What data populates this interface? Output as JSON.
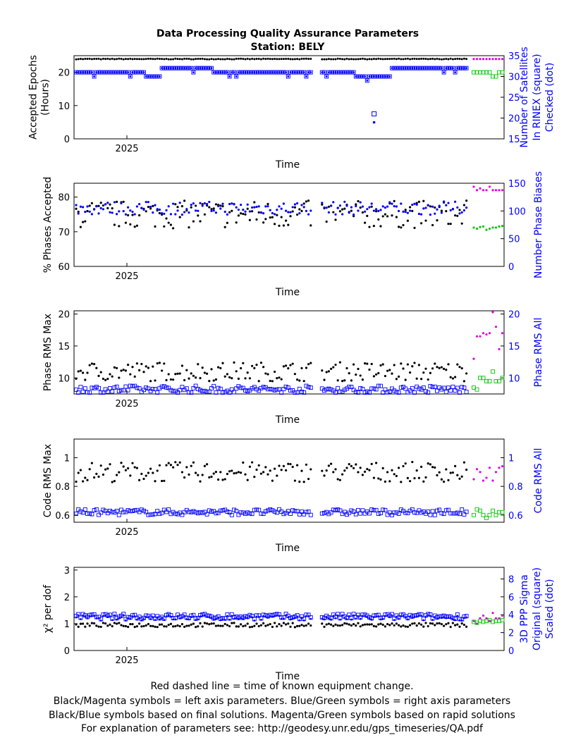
{
  "title": "Data Processing Quality Assurance Parameters",
  "subtitle": "Station: BELY",
  "colors": {
    "black": "#000000",
    "blue": "#0000ff",
    "magenta": "#e600e6",
    "green": "#00c800",
    "axis": "#000000"
  },
  "footer": [
    "Red dashed line = time of known equipment change.",
    "Black/Magenta symbols = left axis parameters. Blue/Green symbols = right axis parameters",
    "Black/Blue symbols based on final solutions.  Magenta/Green symbols based on rapid solutions",
    "For explanation of parameters see: http://geodesy.unr.edu/gps_timeseries/QA.pdf"
  ],
  "chart_data": [
    {
      "type": "scatter",
      "xlabel": "Time",
      "xtick_label": "2025",
      "ylabel_left": [
        "Accepted Epochs",
        "(Hours)"
      ],
      "ylabel_right": [
        "Number of Satellites",
        "In RINEX (square)",
        "Checked (dot)"
      ],
      "ylim_left": [
        0,
        25
      ],
      "ylim_right": [
        15,
        35
      ],
      "yticks_left": [
        "0",
        "10",
        "20"
      ],
      "yticks_right": [
        "15",
        "20",
        "25",
        "30",
        "35"
      ],
      "series_final_left": {
        "base": 24,
        "noise": 0.1
      },
      "series_final_right": {
        "levels": [
          [
            0,
            0.18,
            31
          ],
          [
            0.18,
            0.22,
            30
          ],
          [
            0.22,
            0.35,
            32
          ],
          [
            0.35,
            0.55,
            31
          ],
          [
            0.55,
            0.71,
            31
          ],
          [
            0.71,
            0.8,
            30
          ],
          [
            0.8,
            1,
            32
          ]
        ],
        "outlier": [
          0.76,
          21
        ]
      },
      "series_rapid_left": {
        "values": [
          24,
          24,
          24,
          24,
          24,
          24,
          24,
          24,
          24,
          24
        ]
      },
      "series_rapid_right": {
        "values": [
          31,
          31,
          31,
          31,
          31,
          31,
          30,
          30,
          31,
          31
        ]
      }
    },
    {
      "type": "scatter",
      "xlabel": "Time",
      "xtick_label": "2025",
      "ylabel_left": [
        "% Phases Accepted"
      ],
      "ylabel_right": [
        "Number Phase Biases"
      ],
      "ylim_left": [
        60,
        84
      ],
      "ylim_right": [
        0,
        150
      ],
      "yticks_left": [
        "60",
        "70",
        "80"
      ],
      "yticks_right": [
        "0",
        "50",
        "100",
        "150"
      ],
      "series_final_left": {
        "base": 75,
        "noise": 4
      },
      "series_final_right": {
        "base": 105,
        "noise": 12
      },
      "series_rapid_left": {
        "values": [
          83,
          82,
          82.5,
          82,
          82,
          83,
          82,
          82,
          82,
          82
        ]
      },
      "series_rapid_right": {
        "values": [
          70,
          68,
          71,
          72,
          66,
          68,
          70,
          70,
          72,
          73
        ]
      }
    },
    {
      "type": "scatter",
      "xlabel": "Time",
      "xtick_label": "2025",
      "ylabel_left": [
        "Phase RMS Max"
      ],
      "ylabel_right": [
        "Phase RMS All"
      ],
      "ylim_left": [
        7.5,
        20.5
      ],
      "ylim_right": [
        7.5,
        20.5
      ],
      "yticks_left": [
        "10",
        "15",
        "20"
      ],
      "yticks_right": [
        "10",
        "15",
        "20"
      ],
      "series_final_left": {
        "base": 11,
        "noise": 1.5
      },
      "series_final_right": {
        "base": 8.2,
        "noise": 0.6
      },
      "series_rapid_left": {
        "values": [
          13,
          16.5,
          16.5,
          17,
          16.8,
          17,
          20.5,
          18,
          14.5,
          17
        ]
      },
      "series_rapid_right": {
        "values": [
          8.5,
          8.2,
          10,
          10,
          9.5,
          9.5,
          11,
          9.5,
          9.5,
          10
        ]
      }
    },
    {
      "type": "scatter",
      "xlabel": "Time",
      "xtick_label": "2025",
      "ylabel_left": [
        "Code RMS Max"
      ],
      "ylabel_right": [
        "Code RMS All"
      ],
      "ylim_left": [
        0.55,
        1.13
      ],
      "ylim_right": [
        0.55,
        1.13
      ],
      "yticks_left": [
        "0.6",
        "0.8",
        "1"
      ],
      "yticks_right": [
        "0.6",
        "0.8",
        "1"
      ],
      "series_final_left": {
        "base": 0.9,
        "noise": 0.07
      },
      "series_final_right": {
        "base": 0.62,
        "noise": 0.02
      },
      "series_rapid_left": {
        "values": [
          0.85,
          0.92,
          0.9,
          0.84,
          0.86,
          0.93,
          0.84,
          0.9,
          0.93,
          0.94
        ]
      },
      "series_rapid_right": {
        "values": [
          0.6,
          0.64,
          0.63,
          0.6,
          0.58,
          0.6,
          0.63,
          0.6,
          0.62,
          0.62
        ]
      }
    },
    {
      "type": "scatter",
      "xlabel": "Time",
      "xtick_label": "2025",
      "ylabel_left": [
        "χ² per dof"
      ],
      "ylabel_right": [
        "3D PPP Sigma",
        "Original (square)",
        "Scaled (dot)"
      ],
      "ylim_left": [
        0,
        3.1
      ],
      "ylim_right": [
        0,
        9.3
      ],
      "yticks_left": [
        "0",
        "1",
        "2",
        "3"
      ],
      "yticks_right": [
        "0",
        "2",
        "4",
        "6",
        "8"
      ],
      "series_final_left": {
        "base": 0.95,
        "noise": 0.08
      },
      "series_final_right": {
        "base": 3.8,
        "noise": 0.3
      },
      "series_rapid_left": {
        "values": [
          1.1,
          1.0,
          1.2,
          1.3,
          1.2,
          1.1,
          1.4,
          1.2,
          1.2,
          1.3
        ]
      },
      "series_rapid_right": {
        "values": [
          3.2,
          3.1,
          3.3,
          3.2,
          3.3,
          3.4,
          3.2,
          3.3,
          3.3,
          3.4
        ]
      }
    }
  ]
}
